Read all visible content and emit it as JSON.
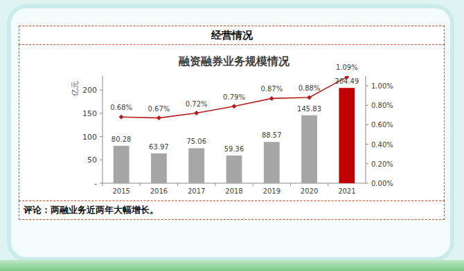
{
  "header": {
    "title": "经营情况"
  },
  "comment": "评论：两融业务近两年大幅增长。",
  "chart_data": {
    "type": "bar",
    "title": "融资融券业务规模情况",
    "y_label": "亿元",
    "categories": [
      "2015",
      "2016",
      "2017",
      "2018",
      "2019",
      "2020",
      "2021"
    ],
    "ylim": [
      0,
      230
    ],
    "yticks": [
      {
        "value": 0,
        "label": "-"
      },
      50,
      100,
      150,
      200
    ],
    "y2lim": [
      0,
      1.1
    ],
    "y2ticks": [
      {
        "value": 0,
        "label": "0.00%"
      },
      {
        "value": 0.2,
        "label": "0.20%"
      },
      {
        "value": 0.4,
        "label": "0.40%"
      },
      {
        "value": 0.6,
        "label": "0.60%"
      },
      {
        "value": 0.8,
        "label": "0.80%"
      },
      {
        "value": 1.0,
        "label": "1.00%"
      }
    ],
    "grid": false,
    "series": [
      {
        "type": "bar",
        "colors": [
          "#a6a6a6",
          "#a6a6a6",
          "#a6a6a6",
          "#a6a6a6",
          "#a6a6a6",
          "#a6a6a6",
          "#c00000"
        ],
        "values": [
          80.28,
          63.97,
          75.06,
          59.36,
          88.57,
          145.83,
          204.49
        ],
        "data_labels": true
      },
      {
        "type": "line",
        "axis": "y2",
        "color": "#b81c1c",
        "marker": "diamond",
        "values": [
          0.68,
          0.67,
          0.72,
          0.79,
          0.87,
          0.88,
          1.09
        ],
        "value_labels": [
          "0.68%",
          "0.67%",
          "0.72%",
          "0.79%",
          "0.87%",
          "0.88%",
          "1.09%"
        ],
        "data_labels": true
      }
    ]
  }
}
